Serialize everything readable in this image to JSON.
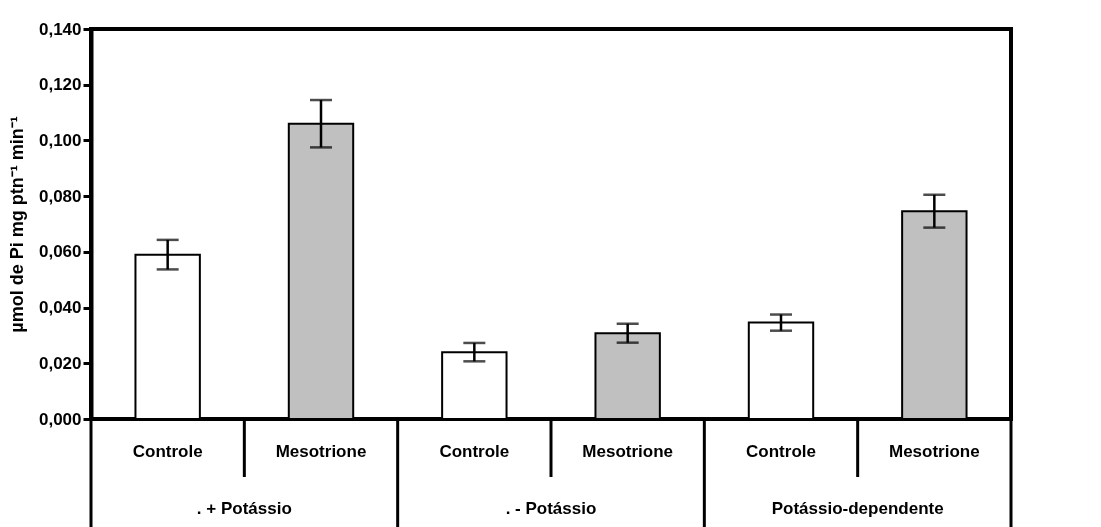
{
  "chart_data": {
    "type": "bar",
    "ylabel": "µmol de Pi mg ptn⁻¹ min⁻¹",
    "categories": [
      ". + Potássio",
      ". - Potássio",
      "Potássio-dependente"
    ],
    "series": [
      {
        "name": "Controle",
        "color": "#ffffff",
        "values": [
          0.059,
          0.024,
          0.0346
        ],
        "errors": [
          0.0053,
          0.0033,
          0.0029
        ]
      },
      {
        "name": "Mesotrione",
        "color": "#c0c0c0",
        "values": [
          0.106,
          0.0308,
          0.0746
        ],
        "errors": [
          0.0085,
          0.0034,
          0.0059
        ]
      }
    ],
    "ylim": [
      0,
      0.14
    ],
    "yticks": [
      {
        "value": 0,
        "label": "0,000"
      },
      {
        "value": 0.02,
        "label": "0,020"
      },
      {
        "value": 0.04,
        "label": "0,040"
      },
      {
        "value": 0.06,
        "label": "0,060"
      },
      {
        "value": 0.08,
        "label": "0,080"
      },
      {
        "value": 0.1,
        "label": "0,100"
      },
      {
        "value": 0.12,
        "label": "0,120"
      },
      {
        "value": 0.14,
        "label": "0,140"
      }
    ],
    "grid": false,
    "legend": false
  }
}
